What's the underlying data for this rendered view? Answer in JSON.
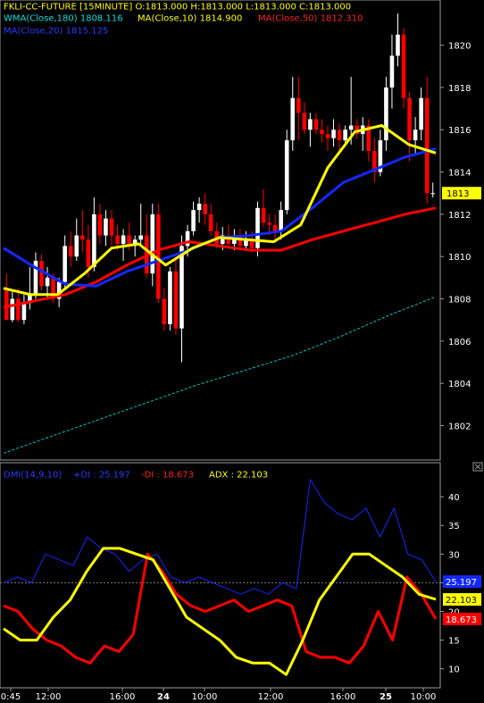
{
  "header": {
    "line1": "FKLI-CC-FUTURE [15MINUTE]  O:1813.000  H:1813.000  L:1813.000  C:1813.000",
    "wma180": "WMA(Close,180)  1808.116",
    "ma10": "MA(Close,10)  1814.900",
    "ma50": "MA(Close,50)  1812.310",
    "ma20": "MA(Close,20)  1815.125"
  },
  "dmi_header": {
    "name": "DMI(14,9,10)",
    "pdi": "+DI : 25.197",
    "mdi": "-DI : 18.673",
    "adx": "ADX : 22.103"
  },
  "colors": {
    "background": "#000000",
    "bull": "#ffffff",
    "bear": "#ff0000",
    "wma180": "#00c8c8",
    "ma10": "#ffff00",
    "ma50": "#ff0000",
    "ma20": "#1428ff",
    "grid": "#808080"
  },
  "chart_data": [
    {
      "type": "candlestick",
      "y_ticks": [
        1802,
        1804,
        1806,
        1808,
        1810,
        1812,
        1814,
        1816,
        1818,
        1820
      ],
      "ylim": [
        1800.5,
        1821.8
      ],
      "last_price_label": "1813",
      "candles": [
        {
          "o": 1808.5,
          "h": 1809.2,
          "l": 1807.0,
          "c": 1807.0
        },
        {
          "o": 1807.0,
          "h": 1808.4,
          "l": 1806.9,
          "c": 1808.0
        },
        {
          "o": 1808.0,
          "h": 1808.5,
          "l": 1806.9,
          "c": 1807.0
        },
        {
          "o": 1807.0,
          "h": 1808.2,
          "l": 1806.8,
          "c": 1807.8
        },
        {
          "o": 1807.8,
          "h": 1809.5,
          "l": 1807.5,
          "c": 1808.2
        },
        {
          "o": 1808.2,
          "h": 1810.2,
          "l": 1808.0,
          "c": 1809.8
        },
        {
          "o": 1809.8,
          "h": 1810.1,
          "l": 1808.4,
          "c": 1808.6
        },
        {
          "o": 1808.6,
          "h": 1809.5,
          "l": 1808.0,
          "c": 1809.0
        },
        {
          "o": 1809.0,
          "h": 1809.2,
          "l": 1807.8,
          "c": 1808.0
        },
        {
          "o": 1808.0,
          "h": 1809.0,
          "l": 1807.6,
          "c": 1808.8
        },
        {
          "o": 1808.8,
          "h": 1811.0,
          "l": 1808.5,
          "c": 1810.5
        },
        {
          "o": 1810.5,
          "h": 1811.2,
          "l": 1809.5,
          "c": 1810.0
        },
        {
          "o": 1810.0,
          "h": 1811.8,
          "l": 1809.8,
          "c": 1811.0
        },
        {
          "o": 1811.0,
          "h": 1812.2,
          "l": 1810.2,
          "c": 1810.8
        },
        {
          "o": 1810.8,
          "h": 1811.5,
          "l": 1809.0,
          "c": 1809.5
        },
        {
          "o": 1809.5,
          "h": 1812.8,
          "l": 1809.3,
          "c": 1812.0
        },
        {
          "o": 1812.0,
          "h": 1812.5,
          "l": 1810.6,
          "c": 1811.0
        },
        {
          "o": 1811.0,
          "h": 1812.2,
          "l": 1810.5,
          "c": 1811.8
        },
        {
          "o": 1811.8,
          "h": 1812.2,
          "l": 1810.5,
          "c": 1811.0
        },
        {
          "o": 1811.0,
          "h": 1811.5,
          "l": 1810.3,
          "c": 1810.6
        },
        {
          "o": 1810.6,
          "h": 1811.3,
          "l": 1809.8,
          "c": 1811.0
        },
        {
          "o": 1811.0,
          "h": 1811.6,
          "l": 1810.3,
          "c": 1810.5
        },
        {
          "o": 1810.5,
          "h": 1811.0,
          "l": 1810.0,
          "c": 1810.8
        },
        {
          "o": 1810.8,
          "h": 1812.5,
          "l": 1810.5,
          "c": 1811.0
        },
        {
          "o": 1811.0,
          "h": 1812.0,
          "l": 1809.0,
          "c": 1809.2
        },
        {
          "o": 1809.2,
          "h": 1812.5,
          "l": 1808.6,
          "c": 1812.0
        },
        {
          "o": 1812.0,
          "h": 1812.5,
          "l": 1807.8,
          "c": 1808.0
        },
        {
          "o": 1808.0,
          "h": 1808.5,
          "l": 1806.5,
          "c": 1806.8
        },
        {
          "o": 1806.8,
          "h": 1809.5,
          "l": 1806.5,
          "c": 1809.3
        },
        {
          "o": 1809.3,
          "h": 1810.0,
          "l": 1806.3,
          "c": 1806.6
        },
        {
          "o": 1806.6,
          "h": 1811.0,
          "l": 1805.0,
          "c": 1810.5
        },
        {
          "o": 1810.5,
          "h": 1811.5,
          "l": 1810.0,
          "c": 1811.2
        },
        {
          "o": 1811.2,
          "h": 1812.6,
          "l": 1811.0,
          "c": 1812.2
        },
        {
          "o": 1812.2,
          "h": 1812.8,
          "l": 1811.6,
          "c": 1812.5
        },
        {
          "o": 1812.5,
          "h": 1813.0,
          "l": 1811.5,
          "c": 1812.0
        },
        {
          "o": 1812.0,
          "h": 1812.5,
          "l": 1811.0,
          "c": 1811.2
        },
        {
          "o": 1811.2,
          "h": 1811.6,
          "l": 1810.4,
          "c": 1810.6
        },
        {
          "o": 1810.6,
          "h": 1811.4,
          "l": 1810.3,
          "c": 1811.0
        },
        {
          "o": 1811.0,
          "h": 1811.5,
          "l": 1810.4,
          "c": 1810.6
        },
        {
          "o": 1810.6,
          "h": 1811.3,
          "l": 1810.3,
          "c": 1811.0
        },
        {
          "o": 1811.0,
          "h": 1811.3,
          "l": 1810.3,
          "c": 1810.5
        },
        {
          "o": 1810.5,
          "h": 1811.2,
          "l": 1810.3,
          "c": 1810.8
        },
        {
          "o": 1810.8,
          "h": 1811.2,
          "l": 1810.2,
          "c": 1810.4
        },
        {
          "o": 1810.4,
          "h": 1812.6,
          "l": 1810.0,
          "c": 1812.3
        },
        {
          "o": 1812.3,
          "h": 1813.2,
          "l": 1811.4,
          "c": 1811.6
        },
        {
          "o": 1811.6,
          "h": 1812.0,
          "l": 1811.0,
          "c": 1811.5
        },
        {
          "o": 1811.5,
          "h": 1812.0,
          "l": 1810.8,
          "c": 1811.2
        },
        {
          "o": 1811.2,
          "h": 1812.6,
          "l": 1810.8,
          "c": 1812.2
        },
        {
          "o": 1812.2,
          "h": 1816.0,
          "l": 1812.0,
          "c": 1815.5
        },
        {
          "o": 1815.5,
          "h": 1818.5,
          "l": 1815.0,
          "c": 1817.5
        },
        {
          "o": 1817.5,
          "h": 1818.5,
          "l": 1815.5,
          "c": 1816.8
        },
        {
          "o": 1816.8,
          "h": 1817.3,
          "l": 1815.8,
          "c": 1816.0
        },
        {
          "o": 1816.0,
          "h": 1816.8,
          "l": 1815.2,
          "c": 1816.5
        },
        {
          "o": 1816.5,
          "h": 1816.8,
          "l": 1815.8,
          "c": 1816.0
        },
        {
          "o": 1816.0,
          "h": 1816.5,
          "l": 1815.4,
          "c": 1815.8
        },
        {
          "o": 1815.8,
          "h": 1816.2,
          "l": 1815.0,
          "c": 1815.6
        },
        {
          "o": 1815.6,
          "h": 1816.5,
          "l": 1815.2,
          "c": 1816.0
        },
        {
          "o": 1816.0,
          "h": 1816.3,
          "l": 1815.0,
          "c": 1815.5
        },
        {
          "o": 1815.5,
          "h": 1816.2,
          "l": 1815.2,
          "c": 1816.0
        },
        {
          "o": 1816.0,
          "h": 1818.5,
          "l": 1815.3,
          "c": 1816.2
        },
        {
          "o": 1816.2,
          "h": 1816.5,
          "l": 1815.6,
          "c": 1815.8
        },
        {
          "o": 1815.8,
          "h": 1816.6,
          "l": 1815.0,
          "c": 1816.2
        },
        {
          "o": 1816.2,
          "h": 1816.5,
          "l": 1814.5,
          "c": 1815.0
        },
        {
          "o": 1815.0,
          "h": 1815.6,
          "l": 1813.5,
          "c": 1814.0
        },
        {
          "o": 1814.0,
          "h": 1816.0,
          "l": 1813.8,
          "c": 1815.5
        },
        {
          "o": 1815.5,
          "h": 1818.5,
          "l": 1815.0,
          "c": 1818.0
        },
        {
          "o": 1818.0,
          "h": 1820.5,
          "l": 1817.0,
          "c": 1819.5
        },
        {
          "o": 1819.5,
          "h": 1821.5,
          "l": 1819.0,
          "c": 1820.5
        },
        {
          "o": 1820.5,
          "h": 1820.8,
          "l": 1817.0,
          "c": 1817.5
        },
        {
          "o": 1817.5,
          "h": 1817.8,
          "l": 1814.5,
          "c": 1815.5
        },
        {
          "o": 1815.5,
          "h": 1816.6,
          "l": 1814.8,
          "c": 1816.0
        },
        {
          "o": 1816.0,
          "h": 1818.0,
          "l": 1815.5,
          "c": 1817.5
        },
        {
          "o": 1817.5,
          "h": 1818.5,
          "l": 1812.5,
          "c": 1813.0
        },
        {
          "o": 1813.0,
          "h": 1813.5,
          "l": 1812.8,
          "c": 1813.0
        }
      ],
      "series": [
        {
          "name": "WMA(Close,180)",
          "color": "#00c8c8",
          "dashed": true,
          "values": [
            1800.7,
            1801.5,
            1802.3,
            1803.1,
            1803.9,
            1804.6,
            1805.3,
            1806.2,
            1807.2,
            1808.1
          ]
        },
        {
          "name": "MA(Close,50)",
          "color": "#ff0000",
          "values": [
            1807.6,
            1807.9,
            1808.2,
            1808.8,
            1809.6,
            1810.3,
            1810.7,
            1810.5,
            1810.3,
            1810.3,
            1810.8,
            1811.2,
            1811.6,
            1812.0,
            1812.3
          ]
        },
        {
          "name": "MA(Close,20)",
          "color": "#1428ff",
          "values": [
            1810.4,
            1809.5,
            1808.7,
            1808.6,
            1809.3,
            1809.8,
            1810.3,
            1810.9,
            1811.0,
            1811.2,
            1812.3,
            1813.5,
            1814.1,
            1814.7,
            1815.1
          ]
        },
        {
          "name": "MA(Close,10)",
          "color": "#ffff00",
          "values": [
            1808.5,
            1808.2,
            1808.2,
            1809.2,
            1810.4,
            1810.6,
            1809.6,
            1810.4,
            1810.9,
            1810.8,
            1810.7,
            1811.5,
            1814.2,
            1815.9,
            1816.2,
            1815.3,
            1814.9
          ]
        }
      ]
    },
    {
      "type": "line",
      "x_ticks": [
        "0:45",
        "12:00",
        "16:00",
        "24",
        "10:00",
        "12:00",
        "16:00",
        "25",
        "10:00"
      ],
      "y_ticks": [
        10,
        15,
        20,
        25,
        30,
        35,
        40
      ],
      "ylim": [
        7,
        45
      ],
      "reference_line": 25,
      "series": [
        {
          "name": "+DI",
          "color": "#1428ff",
          "label": "25.197",
          "values": [
            25,
            26,
            25,
            30,
            29,
            28,
            33,
            31,
            30,
            27,
            29,
            30,
            26,
            25,
            26,
            25,
            24,
            23,
            24,
            23,
            25,
            24,
            43,
            39,
            37,
            36,
            38,
            33,
            38,
            30,
            29,
            25.2
          ]
        },
        {
          "name": "-DI",
          "color": "#ff0000",
          "label": "18.673",
          "values": [
            21,
            20,
            17,
            15,
            14,
            12,
            11,
            14,
            13,
            16,
            30,
            27,
            23,
            21,
            20,
            21,
            22,
            20,
            21,
            22,
            21,
            13,
            12,
            12,
            11,
            14,
            20,
            15,
            26,
            23,
            18.7
          ]
        },
        {
          "name": "ADX",
          "color": "#ffff00",
          "label": "22.103",
          "values": [
            17,
            15,
            15,
            19,
            22,
            27,
            31,
            31,
            30,
            29,
            24,
            19,
            17,
            15,
            12,
            11,
            11,
            9,
            15,
            22,
            26,
            30,
            30,
            28,
            26,
            23,
            22.1
          ]
        }
      ]
    }
  ]
}
